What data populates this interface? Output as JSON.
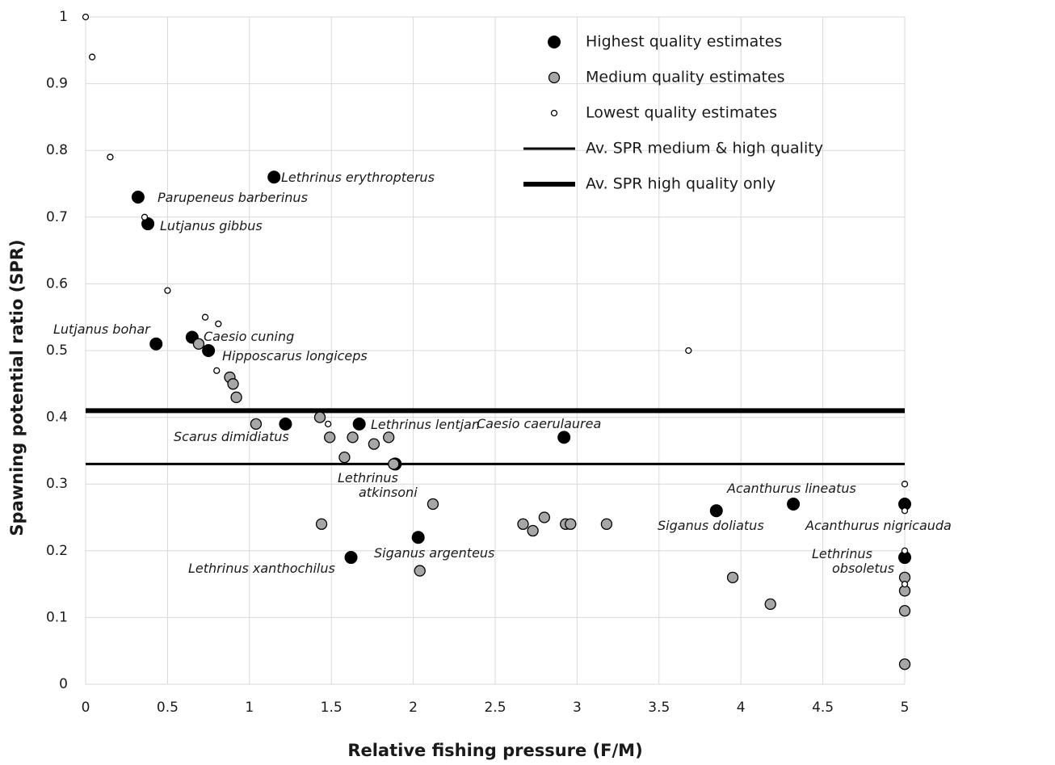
{
  "chart_data": {
    "type": "scatter",
    "xlabel": "Relative fishing pressure (F/M)",
    "ylabel": "Spawning potential ratio (SPR)",
    "xlim": [
      0,
      5
    ],
    "ylim": [
      0,
      1
    ],
    "xticks": [
      0,
      0.5,
      1,
      1.5,
      2,
      2.5,
      3,
      3.5,
      4,
      4.5,
      5
    ],
    "yticks": [
      0,
      0.1,
      0.2,
      0.3,
      0.4,
      0.5,
      0.6,
      0.7,
      0.8,
      0.9,
      1
    ],
    "grid": true,
    "legend": "upper right",
    "series": [
      {
        "name": "Highest quality estimates",
        "color": "#000000",
        "x": [
          0.32,
          0.38,
          1.15,
          0.43,
          0.65,
          0.75,
          1.22,
          1.67,
          1.89,
          2.03,
          1.62,
          2.92,
          3.85,
          4.32,
          5,
          5
        ],
        "values": [
          0.73,
          0.69,
          0.76,
          0.51,
          0.52,
          0.5,
          0.39,
          0.39,
          0.33,
          0.22,
          0.19,
          0.37,
          0.26,
          0.27,
          0.27,
          0.19
        ]
      },
      {
        "name": "Medium quality estimates",
        "color": "#a6a6a6",
        "x": [
          0.69,
          0.88,
          0.9,
          0.92,
          1.04,
          1.43,
          1.49,
          1.58,
          1.63,
          1.76,
          1.85,
          1.88,
          2.12,
          1.44,
          2.04,
          2.67,
          2.73,
          2.8,
          2.93,
          2.96,
          3.18,
          3.95,
          4.18,
          5,
          5,
          5,
          5
        ],
        "values": [
          0.51,
          0.46,
          0.45,
          0.43,
          0.39,
          0.4,
          0.37,
          0.34,
          0.37,
          0.36,
          0.37,
          0.33,
          0.27,
          0.24,
          0.17,
          0.24,
          0.23,
          0.25,
          0.24,
          0.24,
          0.24,
          0.16,
          0.12,
          0.16,
          0.14,
          0.11,
          0.03
        ]
      },
      {
        "name": "Lowest quality estimates",
        "color": "#ffffff",
        "x": [
          0,
          0.04,
          0.15,
          0.36,
          0.5,
          0.73,
          0.81,
          0.8,
          1.48,
          3.68,
          5,
          5,
          5,
          5
        ],
        "values": [
          1,
          0.94,
          0.79,
          0.7,
          0.59,
          0.55,
          0.54,
          0.47,
          0.39,
          0.5,
          0.3,
          0.26,
          0.2,
          0.15
        ]
      }
    ],
    "reference_lines": [
      {
        "name": "Av. SPR medium & high quality",
        "color": "#000000",
        "value": 0.33
      },
      {
        "name": "Av. SPR high quality only",
        "color": "#000000",
        "value": 0.41
      }
    ],
    "annotations": [
      "Lethrinus erythropterus",
      "Parupeneus barberinus",
      "Lutjanus gibbus",
      "Lutjanus bohar",
      "Caesio cuning",
      "Hipposcarus longiceps",
      "Scarus dimidiatus",
      "Lethrinus lentjan",
      "Caesio caerulaurea",
      "Lethrinus",
      "atkinsoni",
      "Siganus argenteus",
      "Lethrinus xanthochilus",
      "Acanthurus lineatus",
      "Siganus doliatus",
      "Acanthurus nigricauda",
      "Lethrinus",
      "obsoletus"
    ]
  }
}
